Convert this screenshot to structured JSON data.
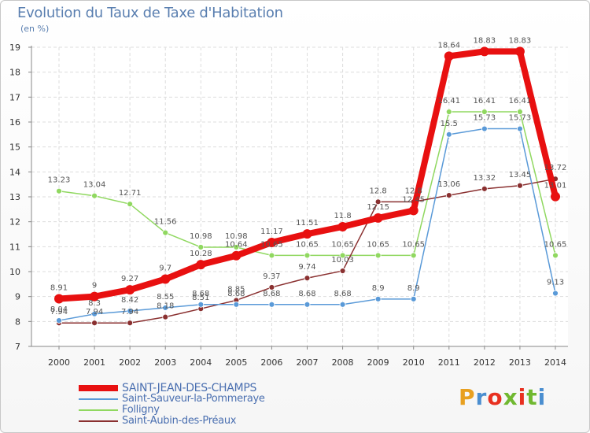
{
  "title": "Evolution du Taux de Taxe d'Habitation",
  "subtitle": "(en %)",
  "logo": {
    "text": "Proxiti",
    "colors": [
      "#e8a020",
      "#4a8ed0",
      "#e83020",
      "#70b830",
      "#e83020",
      "#70b830",
      "#4a8ed0"
    ]
  },
  "chart_data": {
    "type": "line",
    "title": "Evolution du Taux de Taxe d'Habitation",
    "ylabel": "(en %)",
    "xlabel": "",
    "x": [
      2000,
      2001,
      2002,
      2003,
      2004,
      2005,
      2006,
      2007,
      2008,
      2009,
      2010,
      2011,
      2012,
      2013,
      2014
    ],
    "ylim": [
      7,
      19
    ],
    "yticks": [
      7,
      8,
      9,
      10,
      11,
      12,
      13,
      14,
      15,
      16,
      17,
      18,
      19
    ],
    "grid": true,
    "legend_position": "bottom-left",
    "series": [
      {
        "name": "SAINT-JEAN-DES-CHAMPS",
        "color": "#e81010",
        "values": [
          8.91,
          9,
          9.27,
          9.7,
          10.28,
          10.64,
          11.17,
          11.51,
          11.8,
          12.15,
          12.45,
          18.64,
          18.83,
          18.83,
          13.01
        ],
        "labels": [
          "8.91",
          "9",
          "9.27",
          "9.7",
          "10.28",
          "10.64",
          "11.17",
          "11.51",
          "11.8",
          "12.15",
          "12.45",
          "18.64",
          "18.83",
          "18.83",
          "13.01"
        ]
      },
      {
        "name": "Saint-Sauveur-la-Pommeraye",
        "color": "#5a9ad8",
        "values": [
          8.04,
          8.3,
          8.42,
          8.55,
          8.68,
          8.68,
          8.68,
          8.68,
          8.68,
          8.9,
          8.9,
          15.5,
          15.73,
          15.73,
          9.13
        ],
        "labels": [
          "8.04",
          "8.3",
          "8.42",
          "8.55",
          "8.68",
          "8.68",
          "8.68",
          "8.68",
          "8.68",
          "8.9",
          "8.9",
          "15.5",
          "15.73",
          "15.73",
          "9.13"
        ]
      },
      {
        "name": "Folligny",
        "color": "#90d860",
        "values": [
          13.23,
          13.04,
          12.71,
          11.56,
          10.98,
          10.98,
          10.65,
          10.65,
          10.65,
          10.65,
          10.65,
          16.41,
          16.41,
          16.41,
          10.65
        ],
        "labels": [
          "13.23",
          "13.04",
          "12.71",
          "11.56",
          "10.98",
          "10.98",
          "10.65",
          "10.65",
          "10.65",
          "10.65",
          "10.65",
          "16.41",
          "16.41",
          "16.41",
          "10.65"
        ]
      },
      {
        "name": "Saint-Aubin-des-Préaux",
        "color": "#8a3030",
        "values": [
          7.94,
          7.94,
          7.94,
          8.18,
          8.51,
          8.85,
          9.37,
          9.74,
          10.03,
          12.8,
          12.8,
          13.06,
          13.32,
          13.45,
          13.72
        ],
        "labels": [
          "7.94",
          "7.94",
          "7.94",
          "8.18",
          "8.51",
          "8.85",
          "9.37",
          "9.74",
          "10.03",
          "12.8",
          "12.8",
          "13.06",
          "13.32",
          "13.45",
          "13.72"
        ]
      }
    ]
  }
}
